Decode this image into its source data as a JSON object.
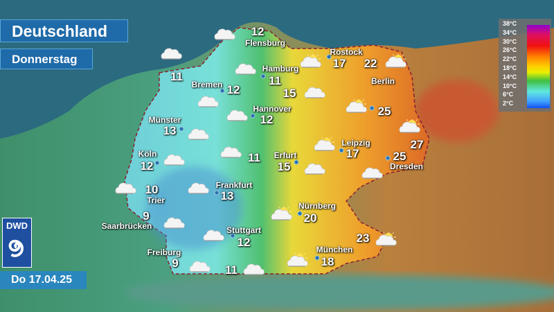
{
  "header": {
    "title": "Deutschland",
    "day": "Donnerstag",
    "date": "Do 17.04.25"
  },
  "logo": {
    "text": "DWD"
  },
  "legend": {
    "labels": [
      "38°C",
      "34°C",
      "30°C",
      "26°C",
      "22°C",
      "18°C",
      "14°C",
      "10°C",
      "6°C",
      "2°C"
    ],
    "colors": [
      "#9000d0",
      "#e01060",
      "#f01010",
      "#ff8000",
      "#ffd000",
      "#e8f000",
      "#40c040",
      "#60e8e0",
      "#40a0ff",
      "#1050f0"
    ]
  },
  "cities": [
    {
      "name": "Flensburg",
      "temp": "12"
    },
    {
      "name": "",
      "temp": "11"
    },
    {
      "name": "Bremen",
      "temp": "12"
    },
    {
      "name": "Hamburg",
      "temp": "11"
    },
    {
      "name": "Rostock",
      "temp": "17"
    },
    {
      "name": "",
      "temp": "22"
    },
    {
      "name": "",
      "temp": "15"
    },
    {
      "name": "Berlin",
      "temp": "25"
    },
    {
      "name": "Hannover",
      "temp": "12"
    },
    {
      "name": "Münster",
      "temp": "13"
    },
    {
      "name": "Köln",
      "temp": "12"
    },
    {
      "name": "",
      "temp": "11"
    },
    {
      "name": "Erfurt",
      "temp": "15"
    },
    {
      "name": "Leipzig",
      "temp": "17"
    },
    {
      "name": "Dresden",
      "temp": "25"
    },
    {
      "name": "",
      "temp": "27"
    },
    {
      "name": "Trier",
      "temp": "10"
    },
    {
      "name": "Frankfurt",
      "temp": "13"
    },
    {
      "name": "Saarbrücken",
      "temp": "9"
    },
    {
      "name": "Nürnberg",
      "temp": "20"
    },
    {
      "name": "Stuttgart",
      "temp": "12"
    },
    {
      "name": "",
      "temp": "23"
    },
    {
      "name": "Freiburg",
      "temp": "9"
    },
    {
      "name": "",
      "temp": "11"
    },
    {
      "name": "München",
      "temp": "18"
    }
  ],
  "weather_icons": [
    "cloud-icon",
    "cloud-icon",
    "cloud-icon",
    "sun-cloud-icon",
    "sun-cloud-icon",
    "cloud-icon",
    "cloud-icon",
    "cloud-icon",
    "sun-cloud-icon",
    "sun-cloud-icon",
    "cloud-icon",
    "cloud-icon",
    "sun-cloud-icon",
    "cloud-icon",
    "cloud-icon",
    "cloud-icon",
    "cloud-icon",
    "cloud-icon",
    "sun-cloud-icon",
    "cloud-icon",
    "cloud-icon",
    "sun-cloud-icon",
    "sun-cloud-icon",
    "cloud-icon",
    "cloud-icon"
  ]
}
